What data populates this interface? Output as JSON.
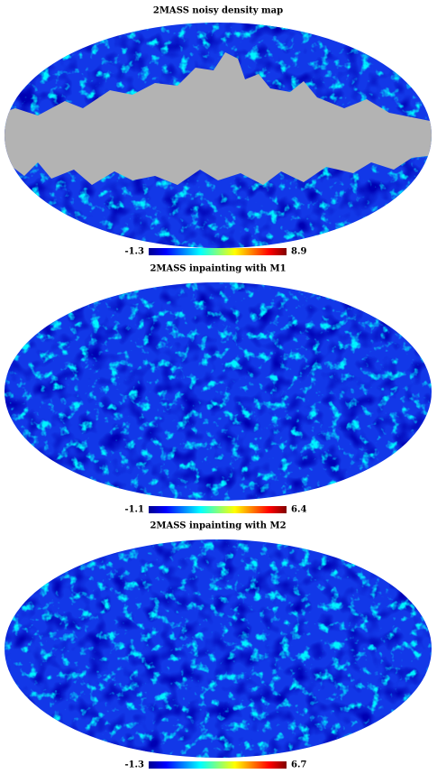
{
  "panels": [
    {
      "title": "2MASS noisy density map",
      "colorbar": {
        "min": -1.3,
        "max": 8.9
      },
      "mask": true
    },
    {
      "title": "2MASS inpainting with M1",
      "colorbar": {
        "min": -1.1,
        "max": 6.4
      },
      "mask": false
    },
    {
      "title": "2MASS inpainting with M2",
      "colorbar": {
        "min": -1.3,
        "max": 6.7
      },
      "mask": false
    }
  ]
}
